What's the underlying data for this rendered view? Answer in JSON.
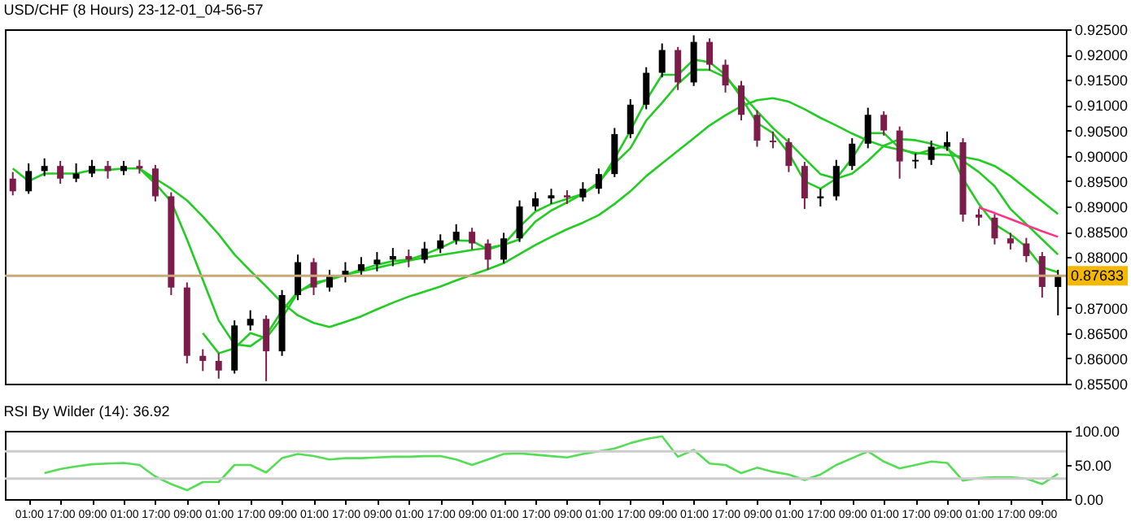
{
  "chart_data": [
    {
      "type": "candlestick",
      "title": "USD/CHF (8 Hours) 23-12-01_04-56-57",
      "tick_labels": "y",
      "categories": [
        null,
        null,
        null,
        null,
        null,
        null,
        null,
        null,
        null,
        null,
        null,
        null,
        null,
        null,
        null,
        null,
        null,
        null,
        null,
        null,
        null,
        null,
        null,
        null,
        null,
        null,
        null,
        null,
        null,
        null,
        null,
        null,
        null,
        null,
        null,
        null,
        null,
        null,
        null,
        null,
        null,
        null,
        null,
        null,
        null,
        null,
        null,
        null,
        null,
        null,
        null,
        null,
        null,
        null,
        null,
        null,
        null,
        null,
        null,
        null,
        null,
        null,
        null,
        null,
        null,
        null,
        null
      ],
      "ohlc": [
        [
          0.8955,
          0.8968,
          0.8922,
          0.893
        ],
        [
          0.893,
          0.8985,
          0.8925,
          0.897
        ],
        [
          0.897,
          0.8995,
          0.896,
          0.898
        ],
        [
          0.898,
          0.899,
          0.8945,
          0.8955
        ],
        [
          0.8955,
          0.8985,
          0.8948,
          0.8965
        ],
        [
          0.8965,
          0.8992,
          0.8958,
          0.898
        ],
        [
          0.898,
          0.899,
          0.8955,
          0.897
        ],
        [
          0.897,
          0.899,
          0.8962,
          0.898
        ],
        [
          0.898,
          0.8992,
          0.8965,
          0.8975
        ],
        [
          0.8975,
          0.8982,
          0.891,
          0.892
        ],
        [
          0.892,
          0.8928,
          0.8725,
          0.874
        ],
        [
          0.874,
          0.875,
          0.859,
          0.8605
        ],
        [
          0.8605,
          0.8618,
          0.8575,
          0.8595
        ],
        [
          0.8595,
          0.861,
          0.856,
          0.8576
        ],
        [
          0.8576,
          0.8675,
          0.857,
          0.8665
        ],
        [
          0.8665,
          0.8695,
          0.8655,
          0.8678
        ],
        [
          0.8678,
          0.8685,
          0.8555,
          0.8614
        ],
        [
          0.8614,
          0.8735,
          0.8605,
          0.8725
        ],
        [
          0.8725,
          0.8805,
          0.8715,
          0.879
        ],
        [
          0.879,
          0.8798,
          0.8725,
          0.874
        ],
        [
          0.874,
          0.8775,
          0.8732,
          0.8763
        ],
        [
          0.8763,
          0.879,
          0.875,
          0.8773
        ],
        [
          0.8773,
          0.88,
          0.8762,
          0.8786
        ],
        [
          0.8786,
          0.881,
          0.8772,
          0.8795
        ],
        [
          0.8795,
          0.8818,
          0.8782,
          0.8802
        ],
        [
          0.8802,
          0.8815,
          0.878,
          0.8795
        ],
        [
          0.8795,
          0.883,
          0.8788,
          0.8817
        ],
        [
          0.8817,
          0.8845,
          0.8808,
          0.8833
        ],
        [
          0.8833,
          0.8865,
          0.8825,
          0.885
        ],
        [
          0.885,
          0.8858,
          0.8815,
          0.8827
        ],
        [
          0.8827,
          0.8835,
          0.8775,
          0.8795
        ],
        [
          0.8795,
          0.8848,
          0.8788,
          0.8837
        ],
        [
          0.8837,
          0.8912,
          0.883,
          0.89
        ],
        [
          0.89,
          0.8928,
          0.8892,
          0.8916
        ],
        [
          0.8916,
          0.8935,
          0.8905,
          0.8922
        ],
        [
          0.8922,
          0.8932,
          0.8905,
          0.8918
        ],
        [
          0.8918,
          0.8948,
          0.891,
          0.8935
        ],
        [
          0.8935,
          0.8975,
          0.8925,
          0.8964
        ],
        [
          0.8964,
          0.9055,
          0.8958,
          0.9043
        ],
        [
          0.9043,
          0.9112,
          0.9035,
          0.9101
        ],
        [
          0.9101,
          0.9175,
          0.9092,
          0.9164
        ],
        [
          0.9164,
          0.9222,
          0.9155,
          0.9209
        ],
        [
          0.9209,
          0.9215,
          0.913,
          0.9145
        ],
        [
          0.9145,
          0.9238,
          0.9138,
          0.9225
        ],
        [
          0.9225,
          0.9232,
          0.9168,
          0.918
        ],
        [
          0.918,
          0.919,
          0.9125,
          0.9139
        ],
        [
          0.9139,
          0.9148,
          0.907,
          0.9081
        ],
        [
          0.9081,
          0.909,
          0.9018,
          0.903
        ],
        [
          0.903,
          0.9048,
          0.9015,
          0.9027
        ],
        [
          0.9027,
          0.9035,
          0.8968,
          0.898
        ],
        [
          0.898,
          0.8988,
          0.8895,
          0.8916
        ],
        [
          0.8916,
          0.8935,
          0.89,
          0.892
        ],
        [
          0.892,
          0.8992,
          0.8912,
          0.898
        ],
        [
          0.898,
          0.9035,
          0.8972,
          0.9024
        ],
        [
          0.9024,
          0.9095,
          0.9015,
          0.9081
        ],
        [
          0.9081,
          0.9088,
          0.904,
          0.905
        ],
        [
          0.905,
          0.9058,
          0.8955,
          0.8989
        ],
        [
          0.8989,
          0.9005,
          0.8975,
          0.8992
        ],
        [
          0.8992,
          0.903,
          0.8982,
          0.9018
        ],
        [
          0.9018,
          0.9048,
          0.901,
          0.9027
        ],
        [
          0.9027,
          0.9035,
          0.887,
          0.8884
        ],
        [
          0.8884,
          0.8895,
          0.8862,
          0.8878
        ],
        [
          0.8878,
          0.8885,
          0.8825,
          0.8837
        ],
        [
          0.8837,
          0.8848,
          0.8815,
          0.8827
        ],
        [
          0.8827,
          0.8838,
          0.879,
          0.8802
        ],
        [
          0.8802,
          0.881,
          0.872,
          0.8741
        ],
        [
          0.8741,
          0.8775,
          0.8685,
          0.8763
        ]
      ],
      "colors": [
        "#7b1c4b",
        "#000000",
        "#000000",
        "#7b1c4b",
        "#000000",
        "#000000",
        "#7b1c4b",
        "#000000",
        "#7b1c4b",
        "#7b1c4b",
        "#7b1c4b",
        "#7b1c4b",
        "#7b1c4b",
        "#7b1c4b",
        "#000000",
        "#000000",
        "#7b1c4b",
        "#000000",
        "#000000",
        "#7b1c4b",
        "#000000",
        "#000000",
        "#000000",
        "#000000",
        "#000000",
        "#7b1c4b",
        "#000000",
        "#000000",
        "#000000",
        "#7b1c4b",
        "#7b1c4b",
        "#000000",
        "#000000",
        "#000000",
        "#000000",
        "#7b1c4b",
        "#000000",
        "#000000",
        "#000000",
        "#000000",
        "#000000",
        "#000000",
        "#7b1c4b",
        "#000000",
        "#7b1c4b",
        "#7b1c4b",
        "#7b1c4b",
        "#7b1c4b",
        "#7b1c4b",
        "#7b1c4b",
        "#7b1c4b",
        "#000000",
        "#000000",
        "#000000",
        "#000000",
        "#7b1c4b",
        "#7b1c4b",
        "#000000",
        "#000000",
        "#000000",
        "#7b1c4b",
        "#7b1c4b",
        "#7b1c4b",
        "#7b1c4b",
        "#7b1c4b",
        "#7b1c4b",
        "#000000"
      ],
      "series": [
        {
          "type": "line",
          "color": "#22cc22",
          "values": [
            0.8975,
            0.895,
            0.8965,
            0.8965,
            0.8965,
            0.8972,
            0.8972,
            0.8975,
            0.8975,
            0.895,
            null,
            null,
            0.865,
            0.861,
            0.862,
            0.865,
            0.864,
            0.868,
            0.873,
            0.875,
            0.8755,
            0.8765,
            0.8775,
            0.8785,
            0.8792,
            0.8795,
            0.8805,
            0.8818,
            0.8833,
            0.8832,
            0.8815,
            0.8825,
            0.886,
            0.889,
            0.8905,
            0.8915,
            0.8925,
            0.8945,
            0.8995,
            0.905,
            0.911,
            0.916,
            0.916,
            0.919,
            0.9185,
            0.916,
            0.9115,
            0.9065,
            0.9045,
            0.9005,
            0.895,
            0.8935,
            0.8955,
            0.8995,
            0.9045,
            0.9045,
            0.9015,
            0.9003,
            0.9012,
            0.902,
            0.8955,
            0.8905,
            0.8865,
            0.8845,
            0.882,
            0.878,
            0.877
          ]
        },
        {
          "type": "line",
          "color": "#22cc22",
          "values": [
            null,
            null,
            null,
            null,
            null,
            null,
            null,
            null,
            0.8975,
            0.8945,
            0.891,
            0.8835,
            0.8755,
            0.8675,
            0.8628,
            0.8624,
            0.8646,
            0.8694,
            0.8732,
            0.8745,
            0.8757,
            0.8765,
            0.8772,
            0.8779,
            0.8786,
            0.8793,
            0.8799,
            0.8804,
            0.8809,
            0.8814,
            0.8818,
            0.8824,
            0.8835,
            0.887,
            0.8892,
            0.8908,
            0.8925,
            0.8948,
            0.8985,
            0.9015,
            0.907,
            0.9105,
            0.9142,
            0.917,
            0.917,
            0.9155,
            0.9123,
            0.9088,
            0.9055,
            0.9027,
            0.8995,
            0.8964,
            0.8955,
            0.8965,
            0.899,
            0.902,
            0.9033,
            0.9031,
            0.9024,
            0.9014,
            0.899,
            0.8968,
            0.894,
            0.8895,
            0.8865,
            0.8835,
            0.8805
          ]
        },
        {
          "type": "line",
          "color": "#22cc22",
          "values": [
            null,
            null,
            null,
            null,
            null,
            null,
            null,
            null,
            0.8975,
            0.8955,
            0.8935,
            0.8912,
            0.888,
            0.8845,
            0.8805,
            0.8773,
            0.8742,
            0.871,
            0.8685,
            0.867,
            0.8662,
            0.8672,
            0.8683,
            0.8697,
            0.871,
            0.8722,
            0.8732,
            0.8742,
            0.8754,
            0.8765,
            0.8776,
            0.8788,
            0.8806,
            0.8824,
            0.884,
            0.8855,
            0.8868,
            0.8883,
            0.8905,
            0.893,
            0.896,
            0.8985,
            0.901,
            0.9035,
            0.906,
            0.908,
            0.9098,
            0.911,
            0.9114,
            0.9107,
            0.9092,
            0.9075,
            0.906,
            0.9044,
            0.903,
            0.9019,
            0.9012,
            0.9006,
            0.9003,
            0.9002,
            0.8998,
            0.8992,
            0.898,
            0.896,
            0.8935,
            0.891,
            0.8885
          ]
        },
        {
          "type": "line",
          "color": "#ff3388",
          "values": [
            null,
            null,
            null,
            null,
            null,
            null,
            null,
            null,
            null,
            null,
            null,
            null,
            null,
            null,
            null,
            null,
            null,
            null,
            null,
            null,
            null,
            null,
            null,
            null,
            null,
            null,
            null,
            null,
            null,
            null,
            null,
            null,
            null,
            null,
            null,
            null,
            null,
            null,
            null,
            null,
            null,
            null,
            null,
            null,
            null,
            null,
            null,
            null,
            null,
            null,
            null,
            null,
            null,
            null,
            null,
            null,
            null,
            null,
            null,
            null,
            null,
            0.8898,
            0.8887,
            0.8875,
            0.8863,
            0.8851,
            0.884
          ]
        }
      ],
      "ylim": [
        0.855,
        0.925
      ],
      "yticks": [
        {
          "value": 0.855,
          "label": "0.85500"
        },
        {
          "value": 0.86,
          "label": "0.86000"
        },
        {
          "value": 0.865,
          "label": "0.86500"
        },
        {
          "value": 0.87,
          "label": "0.87000"
        },
        {
          "value": 0.875,
          "label": null
        },
        {
          "value": 0.88,
          "label": "0.88000"
        },
        {
          "value": 0.885,
          "label": "0.88500"
        },
        {
          "value": 0.89,
          "label": "0.89000"
        },
        {
          "value": 0.895,
          "label": "0.89500"
        },
        {
          "value": 0.9,
          "label": "0.90000"
        },
        {
          "value": 0.905,
          "label": "0.90500"
        },
        {
          "value": 0.91,
          "label": "0.91000"
        },
        {
          "value": 0.915,
          "label": "0.91500"
        },
        {
          "value": 0.92,
          "label": "0.92000"
        },
        {
          "value": 0.925,
          "label": "0.92500"
        }
      ],
      "ref_lines": [
        {
          "axis": "y",
          "value": 0.87633,
          "label": "0.87633",
          "color": "#c8a878"
        }
      ]
    },
    {
      "type": "line",
      "title": "RSI By Wilder (14): 36.92",
      "categories": [
        null,
        "01:00",
        null,
        "17:00",
        null,
        "09:00",
        null,
        "01:00",
        null,
        "17:00",
        null,
        "09:00",
        null,
        "01:00",
        null,
        "17:00",
        null,
        "09:00",
        null,
        "01:00",
        null,
        "17:00",
        null,
        "09:00",
        null,
        "01:00",
        null,
        "17:00",
        null,
        "09:00",
        null,
        "01:00",
        null,
        "17:00",
        null,
        "09:00",
        null,
        "01:00",
        null,
        "17:00",
        null,
        "09:00",
        null,
        "01:00",
        null,
        "17:00",
        null,
        "09:00",
        null,
        "01:00",
        null,
        "17:00",
        null,
        "09:00",
        null,
        "01:00",
        null,
        "17:00",
        null,
        "09:00",
        null,
        "01:00",
        null,
        "17:00",
        null,
        "09:00",
        null
      ],
      "series": [
        {
          "color": "#55dd55",
          "values": [
            null,
            null,
            38,
            44,
            48,
            51,
            52,
            53,
            50,
            33,
            22,
            13,
            25,
            25,
            50,
            50,
            39,
            60,
            66,
            63,
            58,
            60,
            60,
            61,
            62,
            62,
            63,
            63,
            58,
            50,
            58,
            66,
            67,
            65,
            63,
            61,
            66,
            70,
            74,
            82,
            88,
            92,
            62,
            72,
            52,
            50,
            38,
            46,
            40,
            36,
            28,
            36,
            50,
            60,
            70,
            55,
            45,
            50,
            55,
            53,
            27,
            31,
            32,
            32,
            30,
            22,
            37
          ]
        }
      ],
      "ylim": [
        0,
        100
      ],
      "yticks": [
        {
          "value": 0,
          "label": "0.00"
        },
        {
          "value": 50,
          "label": "50.00"
        },
        {
          "value": 100,
          "label": "100.00"
        }
      ],
      "ref_lines": [
        {
          "axis": "y",
          "value": 30,
          "color": "#cccccc"
        },
        {
          "axis": "y",
          "value": 70,
          "color": "#cccccc"
        }
      ]
    }
  ]
}
